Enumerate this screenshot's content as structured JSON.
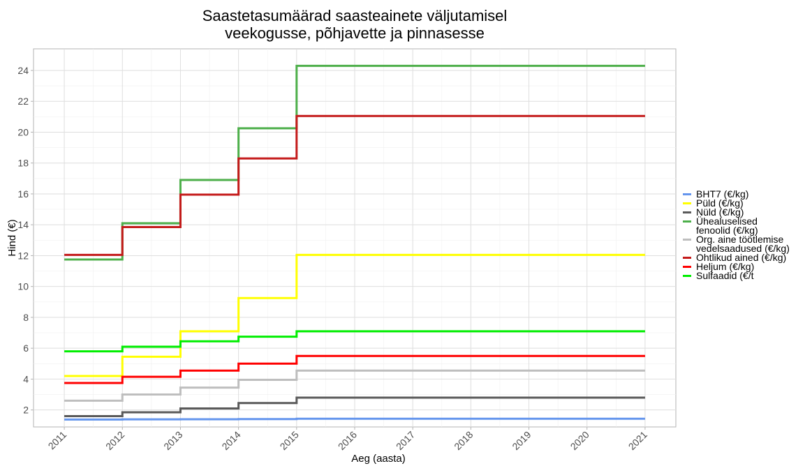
{
  "chart_data": {
    "type": "step",
    "title": "Saastetasumäärad saasteainete väljutamisel\nveekogusse, põhjavette ja pinnasesse",
    "x_label": "Aeg (aasta)",
    "y_label": "Hind (€)",
    "x": [
      2011,
      2012,
      2013,
      2014,
      2015,
      2021
    ],
    "xlim": [
      2010.47,
      2021.53
    ],
    "xticks": [
      2011,
      2012,
      2013,
      2014,
      2015,
      2016,
      2017,
      2018,
      2019,
      2020,
      2021
    ],
    "ylim": [
      0.9,
      25.4
    ],
    "yticks": [
      2,
      4,
      6,
      8,
      10,
      12,
      14,
      16,
      18,
      20,
      22,
      24
    ],
    "grid": true,
    "legend": "right",
    "series": [
      {
        "name": "BHT7 (€/kg)",
        "color": "#6495ed",
        "values": [
          1.38,
          1.39,
          1.4,
          1.41,
          1.43,
          1.43
        ]
      },
      {
        "name": "Püld (€/kg)",
        "color": "#ffff00",
        "values": [
          4.2,
          5.45,
          7.1,
          9.25,
          12.05,
          12.05
        ]
      },
      {
        "name": "Nüld (€/kg)",
        "color": "#5a5a5a",
        "values": [
          1.6,
          1.85,
          2.1,
          2.45,
          2.8,
          2.8
        ]
      },
      {
        "name": "Ühealuselised\nfenoolid (€/kg)",
        "color": "#4daf4a",
        "values": [
          11.75,
          14.1,
          16.9,
          20.25,
          24.3,
          24.3
        ]
      },
      {
        "name": "Org. aine töötlemise\nvedelsaadused (€/kg)",
        "color": "#bebebe",
        "values": [
          2.6,
          3.0,
          3.45,
          3.95,
          4.55,
          4.55
        ]
      },
      {
        "name": "Ohtlikud ained (€/kg)",
        "color": "#c41a1a",
        "values": [
          12.05,
          13.85,
          15.95,
          18.3,
          21.05,
          21.05
        ]
      },
      {
        "name": "Heljum (€/kg)",
        "color": "#ff0000",
        "values": [
          3.75,
          4.15,
          4.55,
          5.0,
          5.5,
          5.5
        ]
      },
      {
        "name": "Sulfaadid (€/t",
        "color": "#00ee00",
        "values": [
          5.8,
          6.1,
          6.45,
          6.75,
          7.1,
          7.1
        ]
      }
    ]
  }
}
